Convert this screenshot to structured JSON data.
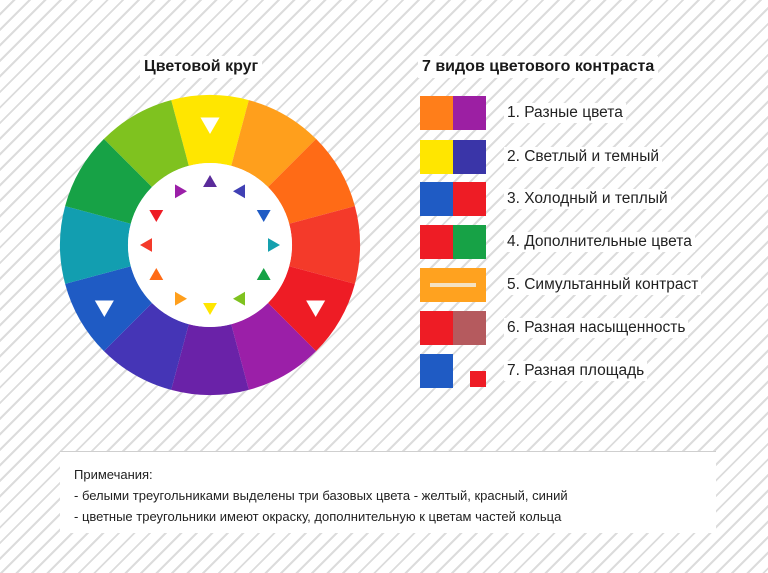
{
  "wheel": {
    "title": "Цветовой круг",
    "segments": [
      "#FFE600",
      "#FF9F1C",
      "#FF6B16",
      "#F43A2A",
      "#EE1C25",
      "#9B1FA8",
      "#6A22A8",
      "#4535B6",
      "#1F5BC4",
      "#129EB0",
      "#17A246",
      "#7FC21F"
    ],
    "inner_triangles": [
      "#5A2B9A",
      "#4040B4",
      "#1F5BC4",
      "#15A0AE",
      "#17A246",
      "#7FC21F",
      "#FFE600",
      "#FF9F1C",
      "#FF6B16",
      "#F43A2A",
      "#EE1C25",
      "#9B1FA8"
    ],
    "base_triangle_color": "#FFFFFF"
  },
  "contrast": {
    "title": "7 видов цветового контраста",
    "rows": [
      {
        "label": "1. Разные цвета",
        "left": "#FF7E1A",
        "right": "#9C1FA3",
        "type": "split"
      },
      {
        "label": "2. Светлый и темный",
        "left": "#FFE600",
        "right": "#3A35A8",
        "type": "split"
      },
      {
        "label": "3. Холодный и теплый",
        "left": "#1F5BC4",
        "right": "#EE1C25",
        "type": "split"
      },
      {
        "label": "4. Дополнительные цвета",
        "left": "#EE1C25",
        "right": "#17A246",
        "type": "split"
      },
      {
        "label": "5. Симультанный контраст",
        "left": "#FFA21F",
        "right": "#FFA21F",
        "stripe": "#F4E2C2",
        "type": "stripe"
      },
      {
        "label": "6. Разная насыщенность",
        "left": "#EE1C25",
        "right": "#B55A5E",
        "type": "split"
      },
      {
        "label": "7. Разная площадь",
        "left": "#1F5BC4",
        "right": "#EE1C25",
        "type": "area"
      }
    ]
  },
  "notes": {
    "heading": "Примечания:",
    "line1": "- белыми треугольниками выделены три базовых цвета - желтый, красный, синий",
    "line2": "- цветные треугольники имеют окраску, дополнительную к цветам частей кольца"
  }
}
